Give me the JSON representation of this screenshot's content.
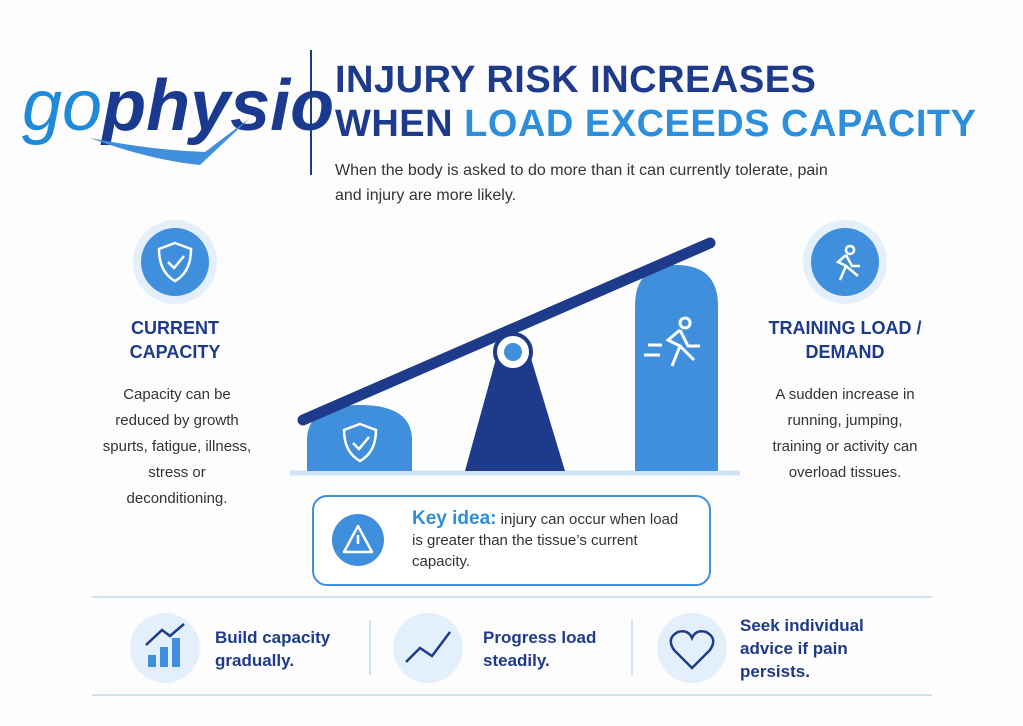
{
  "logo": {
    "prefix": "go",
    "main": "physio"
  },
  "header": {
    "title_line1": "INJURY RISK INCREASES",
    "title_line2_start": "WHEN",
    "title_line2_highlight": "LOAD EXCEEDS CAPACITY",
    "subtitle": "When the body is asked to do more than it can currently tolerate, pain and injury are more likely."
  },
  "left_panel": {
    "heading": "CURRENT CAPACITY",
    "text": "Capacity can be reduced by growth spurts, fatigue, illness, stress or deconditioning."
  },
  "right_panel": {
    "heading": "TRAINING LOAD / DEMAND",
    "text": "A sudden increase in running, jumping, training or activity can overload tissues."
  },
  "key_idea": {
    "label": "Key idea:",
    "text": "injury can occur when load is greater than the tissue’s current capacity."
  },
  "tips": [
    "Build capacity gradually.",
    "Progress load steadily.",
    "Seek individual advice if pain persists."
  ]
}
